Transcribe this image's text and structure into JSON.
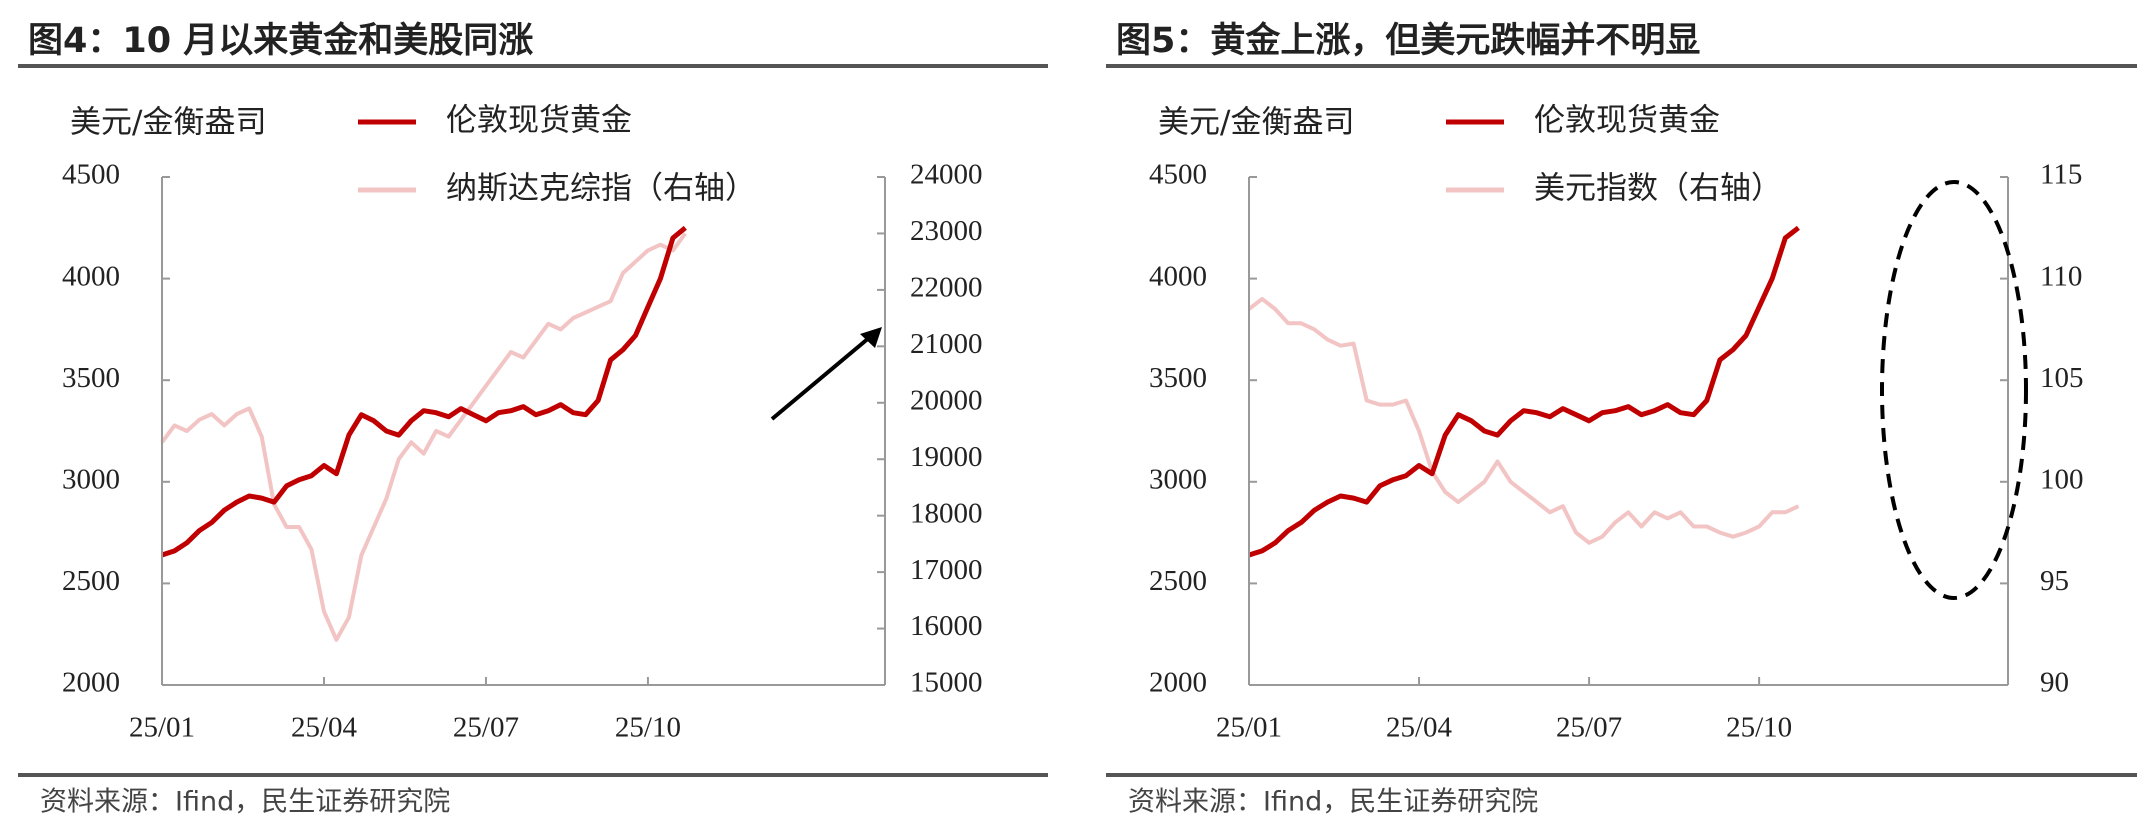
{
  "chart_data": [
    {
      "type": "line",
      "title": "图4：10 月以来黄金和美股同涨",
      "y_unit_label": "美元/金衡盎司",
      "source": "资料来源：Ifind，民生证券研究院",
      "categories": [
        "25/01",
        null,
        null,
        null,
        null,
        null,
        null,
        null,
        null,
        null,
        null,
        null,
        null,
        "25/04",
        null,
        null,
        null,
        null,
        null,
        null,
        null,
        null,
        null,
        null,
        null,
        null,
        "25/07",
        null,
        null,
        null,
        null,
        null,
        null,
        null,
        null,
        null,
        null,
        null,
        null,
        "25/10",
        null,
        null,
        null
      ],
      "series": [
        {
          "name": "伦敦现货黄金",
          "color": "#c00000",
          "values": [
            2640,
            2660,
            2700,
            2760,
            2800,
            2860,
            2900,
            2930,
            2920,
            2900,
            2980,
            3010,
            3030,
            3080,
            3040,
            3230,
            3330,
            3300,
            3250,
            3230,
            3300,
            3350,
            3340,
            3320,
            3360,
            3330,
            3300,
            3340,
            3350,
            3370,
            3330,
            3350,
            3380,
            3340,
            3330,
            3400,
            3600,
            3650,
            3720,
            3860,
            4000,
            4200,
            4250
          ]
        },
        {
          "name": "纳斯达克综指（右轴）",
          "color": "#f2c4c4",
          "axis": "y2",
          "values": [
            19300,
            19600,
            19500,
            19700,
            19800,
            19600,
            19800,
            19900,
            19400,
            18200,
            17800,
            17800,
            17400,
            16300,
            15800,
            16200,
            17300,
            17800,
            18300,
            19000,
            19300,
            19100,
            19500,
            19400,
            19700,
            20000,
            20300,
            20600,
            20900,
            20800,
            21100,
            21400,
            21300,
            21500,
            21600,
            21700,
            21800,
            22300,
            22500,
            22700,
            22800,
            22700,
            23000
          ]
        }
      ],
      "ylim": [
        2000,
        4500
      ],
      "yticks": [
        2000,
        2500,
        3000,
        3500,
        4000,
        4500
      ],
      "y2lim": [
        15000,
        24000
      ],
      "y2ticks": [
        15000,
        16000,
        17000,
        18000,
        19000,
        20000,
        21000,
        22000,
        23000,
        24000
      ]
    },
    {
      "type": "line",
      "title": "图5：黄金上涨，但美元跌幅并不明显",
      "y_unit_label": "美元/金衡盎司",
      "source": "资料来源：Ifind，民生证券研究院",
      "categories": [
        "25/01",
        null,
        null,
        null,
        null,
        null,
        null,
        null,
        null,
        null,
        null,
        null,
        null,
        "25/04",
        null,
        null,
        null,
        null,
        null,
        null,
        null,
        null,
        null,
        null,
        null,
        null,
        "25/07",
        null,
        null,
        null,
        null,
        null,
        null,
        null,
        null,
        null,
        null,
        null,
        null,
        "25/10",
        null,
        null,
        null
      ],
      "series": [
        {
          "name": "伦敦现货黄金",
          "color": "#c00000",
          "values": [
            2640,
            2660,
            2700,
            2760,
            2800,
            2860,
            2900,
            2930,
            2920,
            2900,
            2980,
            3010,
            3030,
            3080,
            3040,
            3230,
            3330,
            3300,
            3250,
            3230,
            3300,
            3350,
            3340,
            3320,
            3360,
            3330,
            3300,
            3340,
            3350,
            3370,
            3330,
            3350,
            3380,
            3340,
            3330,
            3400,
            3600,
            3650,
            3720,
            3860,
            4000,
            4200,
            4250
          ]
        },
        {
          "name": "美元指数（右轴）",
          "color": "#f2c4c4",
          "axis": "y2",
          "values": [
            108.5,
            109,
            108.5,
            107.8,
            107.8,
            107.5,
            107,
            106.7,
            106.8,
            104,
            103.8,
            103.8,
            104,
            102.5,
            100.5,
            99.5,
            99,
            99.5,
            100,
            101,
            100,
            99.5,
            99,
            98.5,
            98.8,
            97.5,
            97,
            97.3,
            98,
            98.5,
            97.8,
            98.5,
            98.2,
            98.5,
            97.8,
            97.8,
            97.5,
            97.3,
            97.5,
            97.8,
            98.5,
            98.5,
            98.8
          ]
        }
      ],
      "ylim": [
        2000,
        4500
      ],
      "yticks": [
        2000,
        2500,
        3000,
        3500,
        4000,
        4500
      ],
      "y2lim": [
        90,
        115
      ],
      "y2ticks": [
        90,
        95,
        100,
        105,
        110,
        115
      ]
    }
  ]
}
